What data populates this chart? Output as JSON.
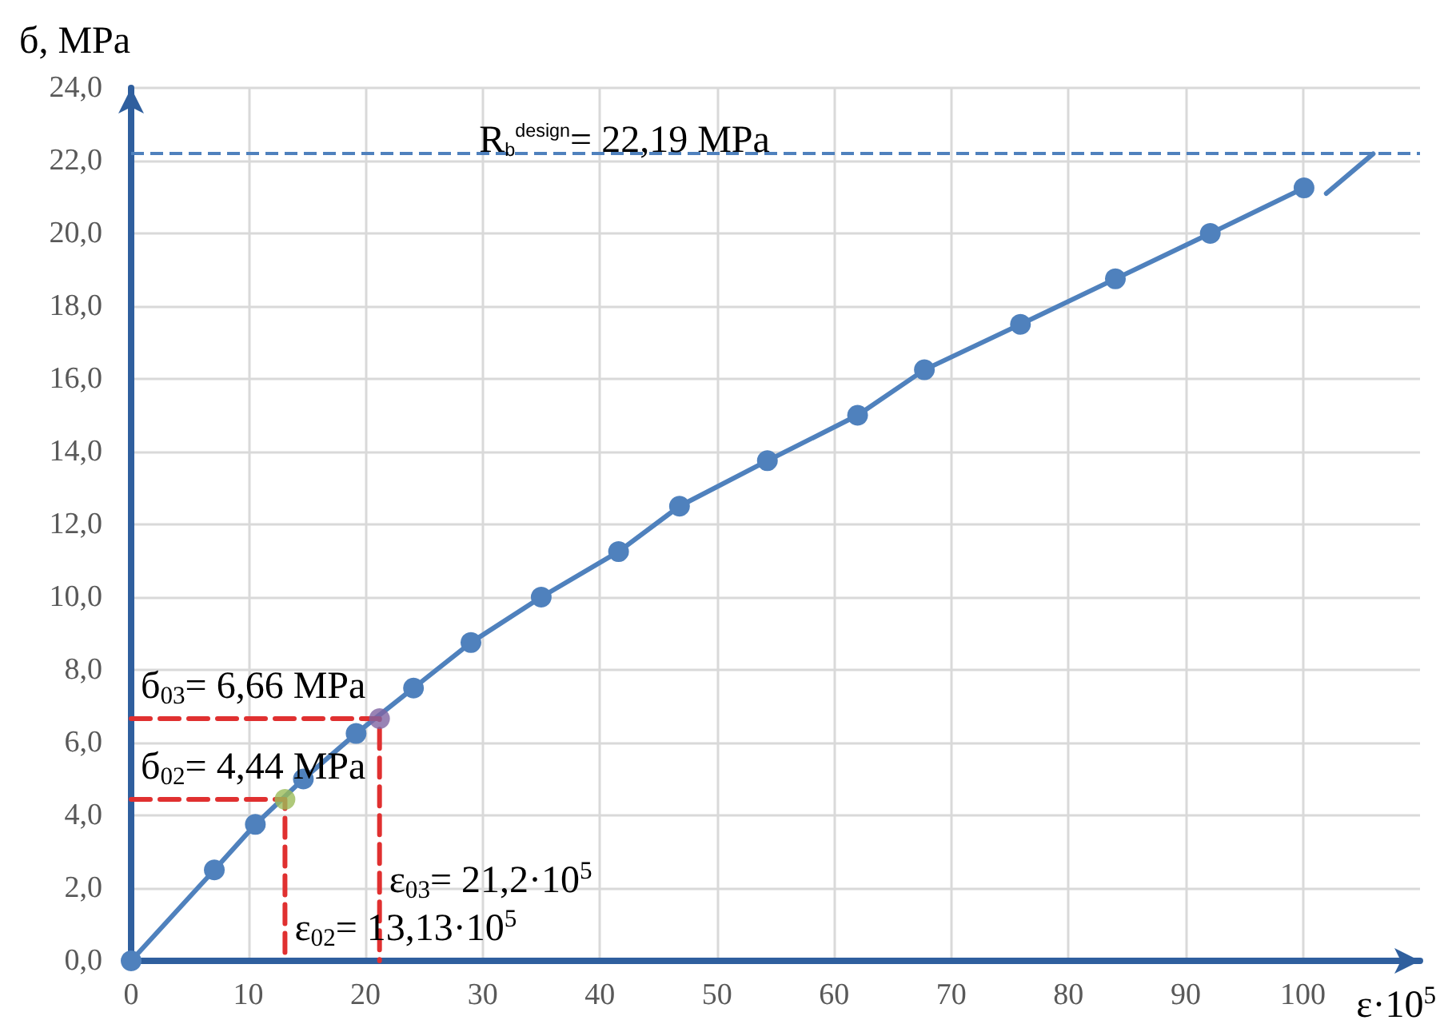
{
  "chart_data": {
    "type": "line",
    "xlabel": "ε·10$^{5}$",
    "ylabel": "б, MPa",
    "xlim": [
      0,
      110
    ],
    "xticks": [
      0,
      10,
      20,
      30,
      40,
      50,
      60,
      70,
      80,
      90,
      100
    ],
    "ylim": [
      0,
      24
    ],
    "yticks": [
      {
        "value": 0,
        "label": "0,0"
      },
      {
        "value": 2,
        "label": "2,0"
      },
      {
        "value": 4,
        "label": "4,0"
      },
      {
        "value": 6,
        "label": "6,0"
      },
      {
        "value": 8,
        "label": "8,0"
      },
      {
        "value": 10,
        "label": "10,0"
      },
      {
        "value": 12,
        "label": "12,0"
      },
      {
        "value": 14,
        "label": "14,0"
      },
      {
        "value": 16,
        "label": "16,0"
      },
      {
        "value": 18,
        "label": "18,0"
      },
      {
        "value": 20,
        "label": "20,0"
      },
      {
        "value": 22,
        "label": "22,0"
      },
      {
        "value": 24,
        "label": "24,0"
      }
    ],
    "grid": true,
    "marker": "circle",
    "line_style": "solid",
    "series": [
      {
        "color": "#4f81bd",
        "x": [
          0,
          7.1,
          10.6,
          14.7,
          19.2,
          24.1,
          29,
          35,
          41.6,
          46.8,
          54.3,
          62,
          67.7,
          75.9,
          84,
          92.1,
          100.1
        ],
        "values": [
          0,
          2.5,
          3.75,
          5,
          6.25,
          7.5,
          8.75,
          10,
          11.25,
          12.5,
          13.75,
          15,
          16.25,
          17.5,
          18.75,
          20,
          21.25
        ]
      },
      {
        "type": "line",
        "marker": "none",
        "color": "#4f81bd",
        "x": [
          102,
          106
        ],
        "values": [
          21.1,
          22.19
        ]
      },
      {
        "type": "line",
        "marker": "none",
        "line_style": "dashed",
        "color": "#e03030",
        "x": [
          0,
          21.2,
          21.2
        ],
        "values": [
          6.66,
          6.66,
          0
        ]
      },
      {
        "type": "line",
        "marker": "none",
        "line_style": "dashed",
        "color": "#e03030",
        "x": [
          0,
          13.13,
          13.13
        ],
        "values": [
          4.44,
          4.44,
          0
        ]
      },
      {
        "type": "scatter",
        "color": "#9bbb59",
        "x": [
          13.13
        ],
        "values": [
          4.44
        ]
      },
      {
        "type": "scatter",
        "color": "#8064a2",
        "x": [
          21.2
        ],
        "values": [
          6.66
        ]
      }
    ],
    "ref_lines": [
      {
        "axis": "y",
        "value": 22.19,
        "label": "R$_{b}$$^{design}$= 22,19 MPa",
        "color": "#4f81bd",
        "line_style": "dashed"
      }
    ],
    "annotations": [
      {
        "text": "б$_{03}$= 6,66 MPa",
        "y": 6.66
      },
      {
        "text": "б$_{02}$= 4,44 MPa",
        "y": 4.44
      },
      {
        "text": "ε$_{02}$= 13,13·10$^{5}$",
        "x": 13.13
      },
      {
        "text": "ε$_{03}$= 21,2·10$^{5}$",
        "x": 21.2
      }
    ]
  }
}
